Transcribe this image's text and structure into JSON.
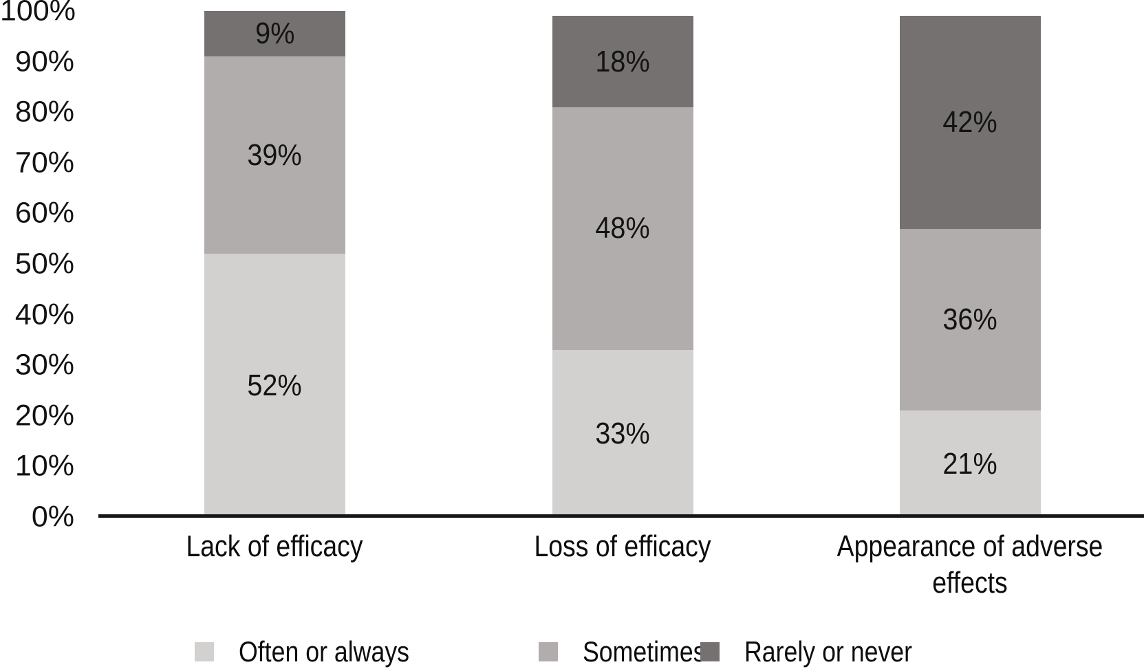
{
  "chart_data": {
    "type": "bar",
    "variant": "stacked-100",
    "title": "",
    "xlabel": "",
    "ylabel": "",
    "categories": [
      "Lack of efficacy",
      "Loss of efficacy",
      "Appearance of adverse effects"
    ],
    "series": [
      {
        "name": "Often or always",
        "color": "#d2d1d0",
        "values": [
          52,
          33,
          21
        ]
      },
      {
        "name": "Sometimes",
        "color": "#b1adac",
        "values": [
          39,
          48,
          36
        ]
      },
      {
        "name": "Rarely or never",
        "color": "#757170",
        "values": [
          9,
          18,
          42
        ]
      }
    ],
    "data_label_suffix": "%",
    "y_axis": {
      "min": 0,
      "max": 100,
      "tick_labels": [
        "0%",
        "10%",
        "20%",
        "30%",
        "40%",
        "50%",
        "60%",
        "70%",
        "80%",
        "90%",
        "100%"
      ]
    },
    "grid": "off",
    "legend_position": "bottom",
    "axis_line_color": "#161616"
  }
}
